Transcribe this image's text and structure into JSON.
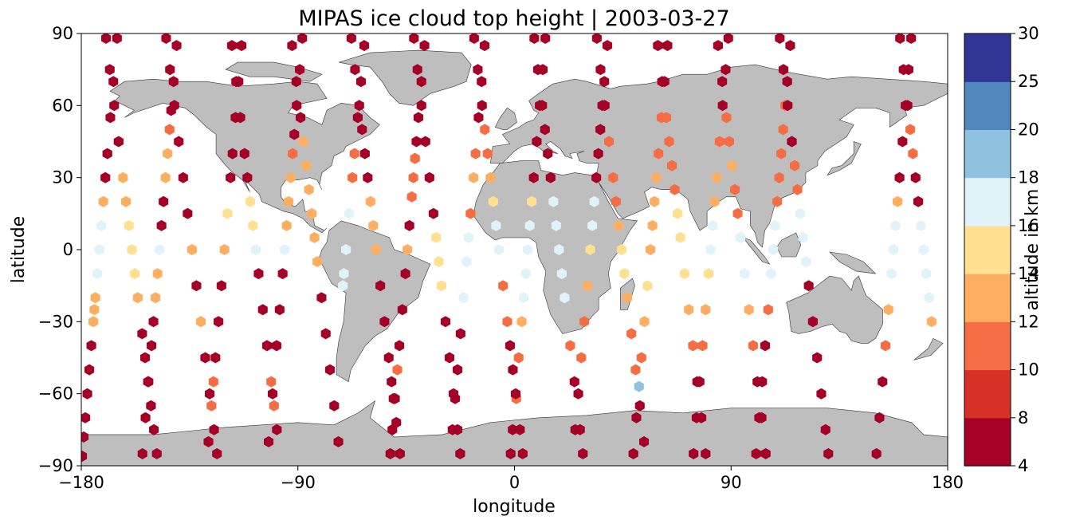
{
  "chart_data": {
    "type": "scatter",
    "title": "MIPAS ice cloud top height | 2003-03-27",
    "xlabel": "longitude",
    "ylabel": "latitude",
    "xlim": [
      -180,
      180
    ],
    "ylim": [
      -90,
      90
    ],
    "xticks": [
      -180,
      -90,
      0,
      90,
      180
    ],
    "yticks": [
      -90,
      -60,
      -30,
      0,
      30,
      60,
      90
    ],
    "xtick_labels": [
      "−180",
      "−90",
      "0",
      "90",
      "180"
    ],
    "ytick_labels": [
      "−90",
      "−60",
      "−30",
      "0",
      "30",
      "60",
      "90"
    ],
    "grid": false,
    "background_map": "world coastlines, land in grey",
    "marker": "hexagon",
    "colorbar": {
      "label": "altitude in km",
      "boundaries": [
        4,
        8,
        10,
        12,
        14,
        16,
        18,
        20,
        25,
        30
      ],
      "tick_labels": [
        "4",
        "8",
        "10",
        "12",
        "14",
        "16",
        "18",
        "20",
        "25",
        "30"
      ],
      "colors": [
        "#a50026",
        "#d73027",
        "#f46d43",
        "#fdae61",
        "#fee090",
        "#ffffbf",
        "#e0f3f8",
        "#abd9e9",
        "#74add1",
        "#4575b4",
        "#313695"
      ],
      "bin_colors": [
        "#a50026",
        "#d73027",
        "#f46d43",
        "#fdae61",
        "#fee090",
        "#e0f3f8",
        "#8fc2de",
        "#5087bc",
        "#313695"
      ],
      "placement": "right"
    },
    "tracks": [
      {
        "lon_north": -165,
        "lon_south": -180,
        "direction": "descending"
      },
      {
        "lon_north": -170,
        "lon_south": -148,
        "direction": "ascending"
      },
      {
        "lon_north": -140,
        "lon_south": -155,
        "direction": "descending"
      },
      {
        "lon_north": -145,
        "lon_south": -123,
        "direction": "ascending"
      },
      {
        "lon_north": -113,
        "lon_south": -128,
        "direction": "descending"
      },
      {
        "lon_north": -118,
        "lon_south": -97,
        "direction": "ascending"
      },
      {
        "lon_north": -88,
        "lon_south": -103,
        "direction": "descending"
      },
      {
        "lon_north": -93,
        "lon_south": -72,
        "direction": "ascending"
      },
      {
        "lon_north": -62,
        "lon_south": -78,
        "direction": "descending"
      },
      {
        "lon_north": -68,
        "lon_south": -47,
        "direction": "ascending"
      },
      {
        "lon_north": -37,
        "lon_south": -52,
        "direction": "descending"
      },
      {
        "lon_north": -42,
        "lon_south": -22,
        "direction": "ascending"
      },
      {
        "lon_north": -12,
        "lon_south": -27,
        "direction": "descending"
      },
      {
        "lon_north": -17,
        "lon_south": 4,
        "direction": "ascending"
      },
      {
        "lon_north": 13,
        "lon_south": -2,
        "direction": "descending"
      },
      {
        "lon_north": 8,
        "lon_south": 29,
        "direction": "ascending"
      },
      {
        "lon_north": 39,
        "lon_south": 24,
        "direction": "descending"
      },
      {
        "lon_north": 34,
        "lon_south": 55,
        "direction": "ascending"
      },
      {
        "lon_north": 64,
        "lon_south": 49,
        "direction": "descending"
      },
      {
        "lon_north": 59,
        "lon_south": 80,
        "direction": "ascending"
      },
      {
        "lon_north": 89,
        "lon_south": 74,
        "direction": "descending"
      },
      {
        "lon_north": 84,
        "lon_south": 105,
        "direction": "ascending"
      },
      {
        "lon_north": 115,
        "lon_south": 100,
        "direction": "descending"
      },
      {
        "lon_north": 110,
        "lon_south": 131,
        "direction": "ascending"
      },
      {
        "lon_north": 165,
        "lon_south": 150,
        "direction": "descending"
      },
      {
        "lon_north": 160,
        "lon_south": 180,
        "direction": "ascending"
      }
    ],
    "points": [
      {
        "track": 0,
        "lat": [
          88,
          70,
          55,
          40,
          30,
          20,
          10,
          0,
          -10,
          -20,
          -25,
          -30,
          -40,
          -50,
          -60,
          -70,
          -78,
          -86
        ],
        "alt": [
          6,
          6,
          6,
          6,
          6,
          13,
          17,
          17,
          17,
          13,
          13,
          13,
          6,
          6,
          6,
          6,
          6,
          6
        ]
      },
      {
        "track": 1,
        "lat": [
          88,
          75,
          60,
          45,
          30,
          20,
          10,
          0,
          -10,
          -20,
          -35,
          -45,
          -55,
          -65,
          -75,
          -85
        ],
        "alt": [
          6,
          6,
          6,
          6,
          13,
          13,
          14,
          14,
          14,
          13,
          6,
          6,
          6,
          6,
          6,
          6
        ]
      },
      {
        "track": 2,
        "lat": [
          85,
          70,
          58,
          50,
          40,
          30,
          20,
          10,
          0,
          -10,
          -20,
          -30,
          -40,
          -55,
          -70,
          -85
        ],
        "alt": [
          6,
          6,
          6,
          11,
          13,
          13,
          6,
          6,
          17,
          13,
          13,
          6,
          6,
          6,
          6,
          6
        ]
      },
      {
        "track": 3,
        "lat": [
          88,
          75,
          60,
          45,
          30,
          15,
          0,
          -15,
          -30,
          -45,
          -60,
          -75,
          -85
        ],
        "alt": [
          6,
          6,
          6,
          6,
          6,
          6,
          13,
          6,
          13,
          6,
          6,
          6,
          6
        ]
      },
      {
        "track": 4,
        "lat": [
          85,
          70,
          55,
          40,
          30,
          15,
          0,
          -15,
          -30,
          -45,
          -55,
          -65,
          -80
        ],
        "alt": [
          6,
          6,
          6,
          6,
          6,
          14,
          13,
          6,
          6,
          6,
          11,
          11,
          6
        ]
      },
      {
        "track": 5,
        "lat": [
          85,
          70,
          55,
          40,
          30,
          20,
          10,
          0,
          -10,
          -25,
          -40,
          -55,
          -65,
          -75
        ],
        "alt": [
          6,
          6,
          6,
          6,
          6,
          14,
          14,
          17,
          6,
          6,
          6,
          11,
          11,
          6
        ]
      },
      {
        "track": 6,
        "lat": [
          88,
          75,
          60,
          48,
          40,
          30,
          20,
          10,
          0,
          -10,
          -25,
          -40,
          -60,
          -80
        ],
        "alt": [
          6,
          6,
          6,
          6,
          11,
          13,
          13,
          13,
          17,
          6,
          6,
          6,
          6,
          6
        ]
      },
      {
        "track": 7,
        "lat": [
          85,
          70,
          55,
          45,
          35,
          25,
          15,
          5,
          -5,
          -20,
          -35,
          -50,
          -65,
          -80
        ],
        "alt": [
          6,
          6,
          6,
          13,
          13,
          13,
          13,
          13,
          13,
          6,
          6,
          6,
          6,
          6
        ]
      },
      {
        "track": 8,
        "lat": [
          85,
          70,
          55,
          40,
          30,
          15,
          0,
          -10,
          -15
        ],
        "alt": [
          6,
          6,
          6,
          11,
          11,
          17,
          17,
          17,
          17
        ]
      },
      {
        "track": 9,
        "lat": [
          88,
          75,
          60,
          50,
          40,
          30,
          20,
          10,
          0,
          -15,
          -30,
          -45,
          -55,
          -62,
          -72,
          -85
        ],
        "alt": [
          6,
          6,
          6,
          6,
          6,
          6,
          13,
          13,
          13,
          6,
          6,
          6,
          6,
          6,
          6,
          6
        ]
      },
      {
        "track": 10,
        "lat": [
          85,
          70,
          55,
          45,
          38,
          30,
          22,
          10,
          0,
          -10,
          -25,
          -40,
          -50,
          -62,
          -75,
          -85
        ],
        "alt": [
          6,
          6,
          6,
          6,
          11,
          11,
          11,
          6,
          13,
          6,
          6,
          6,
          11,
          6,
          6,
          6
        ]
      },
      {
        "track": 11,
        "lat": [
          88,
          75,
          60,
          45,
          30,
          15,
          5,
          -5,
          -15,
          -30,
          -45,
          -60,
          -75,
          -85
        ],
        "alt": [
          6,
          6,
          6,
          6,
          6,
          6,
          15,
          15,
          15,
          6,
          6,
          6,
          6,
          6
        ]
      },
      {
        "track": 12,
        "lat": [
          85,
          70,
          55,
          40,
          30,
          15,
          5,
          -5,
          -20,
          -35,
          -50,
          -62,
          -75
        ],
        "alt": [
          6,
          6,
          6,
          11,
          13,
          11,
          17,
          17,
          17,
          6,
          6,
          6,
          6
        ]
      },
      {
        "track": 13,
        "lat": [
          88,
          75,
          60,
          50,
          40,
          30,
          20,
          10,
          0,
          -15,
          -30,
          -40,
          -50,
          -62,
          -75,
          -85
        ],
        "alt": [
          6,
          6,
          6,
          11,
          11,
          13,
          15,
          17,
          17,
          11,
          11,
          6,
          6,
          11,
          6,
          6
        ]
      },
      {
        "track": 14,
        "lat": [
          88,
          75,
          60,
          45,
          30,
          20,
          10,
          0,
          -10,
          -20,
          -30,
          -45,
          -60,
          -75,
          -85
        ],
        "alt": [
          6,
          6,
          6,
          6,
          6,
          15,
          17,
          17,
          17,
          17,
          13,
          11,
          6,
          6,
          6
        ]
      },
      {
        "track": 15,
        "lat": [
          88,
          75,
          60,
          50,
          40,
          30,
          20,
          10,
          0,
          -10,
          -20,
          -40,
          -55,
          -75,
          -85
        ],
        "alt": [
          6,
          6,
          6,
          6,
          6,
          6,
          17,
          17,
          17,
          17,
          17,
          11,
          6,
          6,
          6
        ]
      },
      {
        "track": 16,
        "lat": [
          85,
          70,
          60,
          50,
          40,
          30,
          20,
          10,
          0,
          -15,
          -30,
          -45,
          -60,
          -75
        ],
        "alt": [
          6,
          6,
          6,
          6,
          6,
          6,
          17,
          17,
          15,
          13,
          11,
          11,
          6,
          6
        ]
      },
      {
        "track": 17,
        "lat": [
          88,
          75,
          60,
          45,
          30,
          20,
          10,
          0,
          -10,
          -20,
          -35,
          -50,
          -65,
          -80
        ],
        "alt": [
          6,
          6,
          6,
          11,
          11,
          11,
          13,
          15,
          15,
          13,
          11,
          11,
          6,
          6
        ]
      },
      {
        "track": 18,
        "lat": [
          85,
          70,
          55,
          40,
          30,
          20,
          10,
          0,
          -15,
          -30,
          -45,
          -57,
          -70,
          -85
        ],
        "alt": [
          6,
          6,
          11,
          11,
          13,
          13,
          13,
          13,
          15,
          13,
          11,
          19,
          6,
          6
        ]
      },
      {
        "track": 19,
        "lat": [
          85,
          70,
          55,
          45,
          35,
          25,
          15,
          5,
          -10,
          -25,
          -40,
          -55,
          -70,
          -85
        ],
        "alt": [
          6,
          6,
          11,
          11,
          11,
          11,
          15,
          15,
          15,
          13,
          11,
          6,
          6,
          6
        ]
      },
      {
        "track": 20,
        "lat": [
          88,
          75,
          60,
          45,
          30,
          20,
          10,
          0,
          -10,
          -25,
          -40,
          -55,
          -70,
          -85
        ],
        "alt": [
          6,
          6,
          6,
          11,
          13,
          13,
          17,
          17,
          15,
          13,
          11,
          6,
          6,
          6
        ]
      },
      {
        "track": 21,
        "lat": [
          85,
          70,
          55,
          45,
          35,
          25,
          15,
          5,
          -10,
          -25,
          -40,
          -55,
          -70,
          -85
        ],
        "alt": [
          6,
          6,
          11,
          11,
          13,
          11,
          11,
          17,
          17,
          13,
          11,
          6,
          6,
          6
        ]
      },
      {
        "track": 22,
        "lat": [
          85,
          70,
          60,
          50,
          40,
          30,
          20,
          10,
          0,
          -10,
          -25,
          -40,
          -55,
          -70,
          -85
        ],
        "alt": [
          6,
          6,
          11,
          11,
          11,
          11,
          11,
          17,
          17,
          17,
          11,
          6,
          6,
          6,
          6
        ]
      },
      {
        "track": 23,
        "lat": [
          88,
          75,
          60,
          45,
          35,
          25,
          15,
          5,
          -5,
          -15,
          -30,
          -45,
          -60,
          -75,
          -85
        ],
        "alt": [
          6,
          6,
          6,
          6,
          11,
          11,
          17,
          17,
          17,
          6,
          6,
          6,
          6,
          6,
          6
        ]
      },
      {
        "track": 24,
        "lat": [
          88,
          75,
          60,
          45,
          30,
          20,
          10,
          0,
          -10,
          -25,
          -40,
          -55,
          -70,
          -85
        ],
        "alt": [
          6,
          6,
          6,
          6,
          6,
          13,
          17,
          17,
          17,
          13,
          11,
          6,
          6,
          6
        ]
      },
      {
        "track": 25,
        "lat": [
          88,
          75,
          60,
          50,
          40,
          30,
          20,
          10,
          0,
          -10,
          -20,
          -30
        ],
        "alt": [
          6,
          6,
          6,
          11,
          11,
          6,
          6,
          17,
          17,
          17,
          17,
          13
        ]
      }
    ]
  }
}
